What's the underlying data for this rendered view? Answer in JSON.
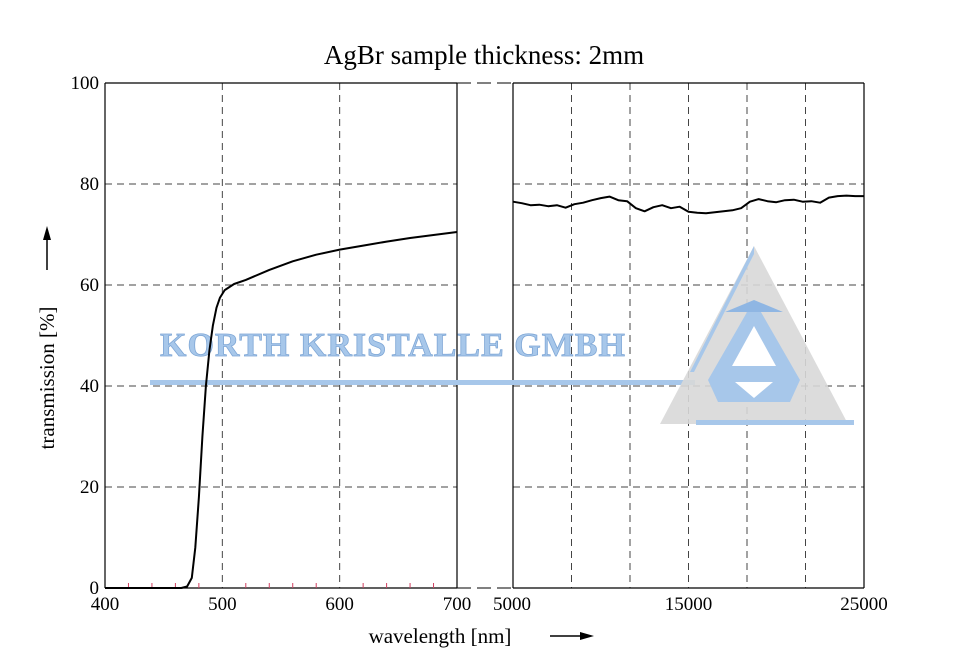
{
  "chart_data": {
    "type": "line",
    "title": "AgBr sample thickness: 2mm",
    "xlabel": "wavelength [nm]",
    "ylabel": "transmission [%]",
    "ylim": [
      0,
      100
    ],
    "yticks": [
      0,
      20,
      40,
      60,
      80,
      100
    ],
    "grid": true,
    "panels": [
      {
        "name": "visible",
        "xlim": [
          400,
          700
        ],
        "xticks": [
          "400",
          "500",
          "600",
          "700"
        ],
        "series": [
          {
            "x": [
              400,
              450,
              465,
              470,
              474,
              477,
              480,
              483,
              486,
              489,
              492,
              495,
              498,
              502,
              510,
              520,
              540,
              560,
              580,
              600,
              620,
              640,
              660,
              680,
              700
            ],
            "y": [
              0,
              0,
              0,
              0.3,
              2,
              8,
              18,
              30,
              40,
              47,
              52,
              55.5,
              57.5,
              59,
              60.2,
              61,
              63,
              64.7,
              66,
              67,
              67.8,
              68.6,
              69.3,
              69.9,
              70.5
            ]
          }
        ]
      },
      {
        "name": "infrared",
        "xlim": [
          5000,
          25000
        ],
        "xticks": [
          "5000",
          "15000",
          "25000"
        ],
        "series": [
          {
            "x": [
              5000,
              5500,
              6000,
              6500,
              7000,
              7500,
              8000,
              8500,
              9000,
              9500,
              10000,
              10500,
              11000,
              11500,
              12000,
              12500,
              13000,
              13500,
              14000,
              14500,
              15000,
              15500,
              16000,
              16500,
              17000,
              17500,
              18000,
              18500,
              19000,
              19500,
              20000,
              20500,
              21000,
              21500,
              22000,
              22500,
              23000,
              23500,
              24000,
              24500,
              25000
            ],
            "y": [
              76.5,
              76.2,
              75.8,
              75.9,
              75.6,
              75.8,
              75.3,
              76.0,
              76.3,
              76.8,
              77.2,
              77.5,
              76.8,
              76.6,
              75.2,
              74.6,
              75.4,
              75.8,
              75.2,
              75.5,
              74.5,
              74.3,
              74.2,
              74.4,
              74.6,
              74.8,
              75.2,
              76.5,
              77.0,
              76.6,
              76.4,
              76.8,
              76.9,
              76.5,
              76.6,
              76.3,
              77.3,
              77.6,
              77.7,
              77.6,
              77.6
            ]
          }
        ]
      }
    ]
  },
  "watermark": {
    "text": "KORTH KRISTALLE GMBH",
    "color": "#a7c7ea",
    "logo": "korth-kristalle-triangle-logo"
  },
  "colors": {
    "line": "#000000",
    "grid": "#444444",
    "minor_tick": "#d04060"
  }
}
